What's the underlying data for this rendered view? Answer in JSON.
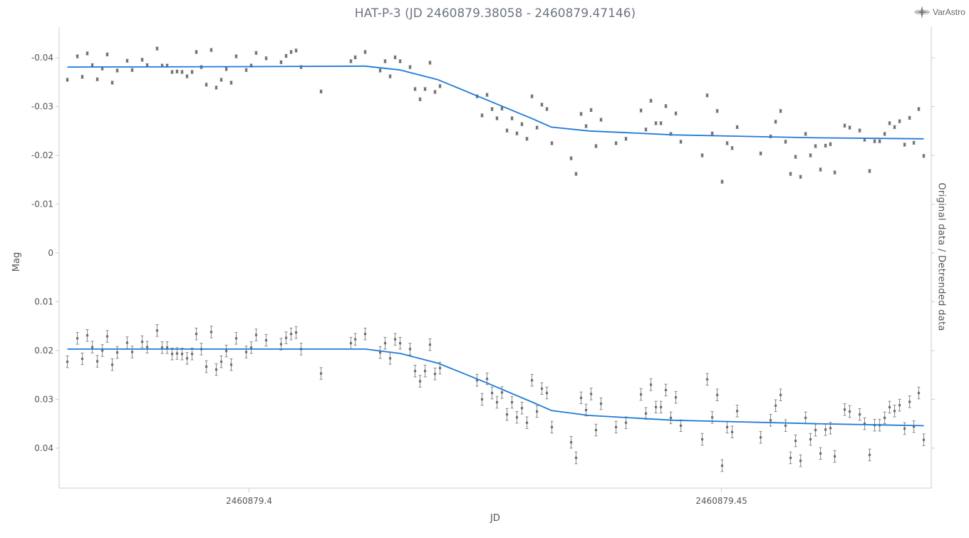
{
  "chart_data": {
    "type": "scatter",
    "title": "HAT-P-3 (JD 2460879.38058 - 2460879.47146)",
    "xlabel": "JD",
    "ylabel": "Mag",
    "y2label": "Original data / Detrended data",
    "xlim": [
      2460879.3799,
      2460879.4722
    ],
    "ylim": [
      -0.0463,
      0.0482
    ],
    "y_inverted": true,
    "xticks": [
      {
        "v": 2460879.4,
        "label": "2460879.4"
      },
      {
        "v": 2460879.45,
        "label": "2460879.45"
      }
    ],
    "yticks": [
      {
        "v": -0.04,
        "label": "-0.04"
      },
      {
        "v": -0.03,
        "label": "-0.03"
      },
      {
        "v": -0.02,
        "label": "-0.02"
      },
      {
        "v": -0.01,
        "label": "-0.01"
      },
      {
        "v": 0,
        "label": "0"
      },
      {
        "v": 0.01,
        "label": "0.01"
      },
      {
        "v": 0.02,
        "label": "0.02"
      },
      {
        "v": 0.03,
        "label": "0.03"
      },
      {
        "v": 0.04,
        "label": "0.04"
      }
    ],
    "x": [
      2460879.38077,
      2460879.38183,
      2460879.38235,
      2460879.38288,
      2460879.38341,
      2460879.38394,
      2460879.38447,
      2460879.38499,
      2460879.38552,
      2460879.38605,
      2460879.3871,
      2460879.38763,
      2460879.38869,
      2460879.38922,
      2460879.39027,
      2460879.3908,
      2460879.39133,
      2460879.39186,
      2460879.39238,
      2460879.39291,
      2460879.39344,
      2460879.39397,
      2460879.39442,
      2460879.39495,
      2460879.39548,
      2460879.396,
      2460879.39653,
      2460879.39706,
      2460879.39759,
      2460879.39811,
      2460879.39864,
      2460879.3997,
      2460879.40023,
      2460879.40075,
      2460879.40181,
      2460879.40339,
      2460879.40392,
      2460879.40445,
      2460879.40498,
      2460879.40551,
      2460879.40762,
      2460879.41078,
      2460879.41124,
      2460879.41229,
      2460879.41388,
      2460879.4144,
      2460879.41493,
      2460879.41546,
      2460879.41599,
      2460879.41704,
      2460879.41757,
      2460879.4181,
      2460879.41863,
      2460879.41915,
      2460879.41968,
      2460879.42021,
      2460879.42413,
      2460879.42466,
      2460879.42519,
      2460879.42572,
      2460879.42624,
      2460879.42677,
      2460879.4273,
      2460879.42783,
      2460879.42835,
      2460879.42888,
      2460879.42941,
      2460879.42994,
      2460879.43047,
      2460879.43099,
      2460879.43152,
      2460879.43205,
      2460879.43409,
      2460879.43461,
      2460879.43514,
      2460879.43567,
      2460879.4362,
      2460879.43672,
      2460879.43725,
      2460879.43884,
      2460879.43989,
      2460879.44148,
      2460879.442,
      2460879.44253,
      2460879.44306,
      2460879.44359,
      2460879.44411,
      2460879.44464,
      2460879.44517,
      2460879.4457,
      2460879.44796,
      2460879.44849,
      2460879.44902,
      2460879.44955,
      2460879.45007,
      2460879.4506,
      2460879.45113,
      2460879.45166,
      2460879.45415,
      2460879.4552,
      2460879.45573,
      2460879.45626,
      2460879.45678,
      2460879.45731,
      2460879.45784,
      2460879.45837,
      2460879.4589,
      2460879.45942,
      2460879.45995,
      2460879.46048,
      2460879.46101,
      2460879.46153,
      2460879.46199,
      2460879.46304,
      2460879.46357,
      2460879.46463,
      2460879.46515,
      2460879.46568,
      2460879.46621,
      2460879.46674,
      2460879.46727,
      2460879.46779,
      2460879.46832,
      2460879.46885,
      2460879.46938,
      2460879.46991,
      2460879.47036,
      2460879.47088,
      2460879.47141
    ],
    "series": [
      {
        "name": "Original data",
        "color": "#777777",
        "error": 0.0003,
        "values": [
          -0.0355,
          -0.0403,
          -0.0361,
          -0.0409,
          -0.0385,
          -0.0356,
          -0.0378,
          -0.0407,
          -0.0349,
          -0.0374,
          -0.0394,
          -0.0375,
          -0.0396,
          -0.0385,
          -0.0419,
          -0.0384,
          -0.0384,
          -0.0371,
          -0.0372,
          -0.0371,
          -0.0362,
          -0.0371,
          -0.0412,
          -0.0381,
          -0.0345,
          -0.0416,
          -0.0339,
          -0.0355,
          -0.0377,
          -0.0349,
          -0.0403,
          -0.0375,
          -0.0384,
          -0.041,
          -0.0399,
          -0.0391,
          -0.0404,
          -0.0412,
          -0.0415,
          -0.0381,
          -0.0331,
          -0.0393,
          -0.0401,
          -0.0412,
          -0.0374,
          -0.0393,
          -0.0362,
          -0.0401,
          -0.0393,
          -0.0381,
          -0.0336,
          -0.0315,
          -0.0336,
          -0.039,
          -0.033,
          -0.0342,
          -0.0321,
          -0.0282,
          -0.0324,
          -0.0295,
          -0.0276,
          -0.0296,
          -0.0251,
          -0.0276,
          -0.0245,
          -0.0264,
          -0.0234,
          -0.0321,
          -0.0257,
          -0.0304,
          -0.0295,
          -0.0225,
          -0.0194,
          -0.0162,
          -0.0285,
          -0.026,
          -0.0293,
          -0.0219,
          -0.0273,
          -0.0225,
          -0.0234,
          -0.0292,
          -0.0253,
          -0.0312,
          -0.0266,
          -0.0266,
          -0.0301,
          -0.0244,
          -0.0286,
          -0.0228,
          -0.02,
          -0.0323,
          -0.0245,
          -0.0291,
          -0.0146,
          -0.0225,
          -0.0215,
          -0.0258,
          -0.0204,
          -0.0239,
          -0.0269,
          -0.0291,
          -0.0228,
          -0.0162,
          -0.0197,
          -0.0156,
          -0.0244,
          -0.02,
          -0.0219,
          -0.0171,
          -0.022,
          -0.0223,
          -0.0165,
          -0.0261,
          -0.0257,
          -0.0251,
          -0.0232,
          -0.0168,
          -0.0229,
          -0.0229,
          -0.0244,
          -0.0266,
          -0.0258,
          -0.027,
          -0.0222,
          -0.0277,
          -0.0226,
          -0.0295,
          -0.0199
        ]
      },
      {
        "name": "Detrended data",
        "color": "#888888",
        "error": 0.0012,
        "values": [
          0.0223,
          0.0175,
          0.0217,
          0.0169,
          0.0193,
          0.0222,
          0.02,
          0.0171,
          0.0229,
          0.0204,
          0.0184,
          0.0203,
          0.0182,
          0.0193,
          0.0159,
          0.0194,
          0.0194,
          0.0207,
          0.0206,
          0.0207,
          0.0216,
          0.0207,
          0.0166,
          0.0197,
          0.0233,
          0.0162,
          0.0239,
          0.0223,
          0.0201,
          0.0229,
          0.0175,
          0.0203,
          0.0194,
          0.0168,
          0.0179,
          0.0187,
          0.0174,
          0.0166,
          0.0163,
          0.0197,
          0.0247,
          0.0185,
          0.0177,
          0.0166,
          0.0204,
          0.0185,
          0.0216,
          0.0177,
          0.0185,
          0.0197,
          0.0242,
          0.0263,
          0.0242,
          0.0188,
          0.0248,
          0.0236,
          0.0261,
          0.03,
          0.0258,
          0.0287,
          0.0306,
          0.0286,
          0.0331,
          0.0306,
          0.0337,
          0.0318,
          0.0348,
          0.0261,
          0.0325,
          0.0278,
          0.0287,
          0.0357,
          0.0388,
          0.042,
          0.0297,
          0.0322,
          0.0289,
          0.0363,
          0.0309,
          0.0357,
          0.0348,
          0.029,
          0.0329,
          0.027,
          0.0316,
          0.0316,
          0.0281,
          0.0338,
          0.0296,
          0.0354,
          0.0382,
          0.0259,
          0.0337,
          0.0291,
          0.0436,
          0.0357,
          0.0367,
          0.0324,
          0.0378,
          0.0343,
          0.0313,
          0.0291,
          0.0354,
          0.042,
          0.0385,
          0.0426,
          0.0338,
          0.0382,
          0.0363,
          0.0411,
          0.0362,
          0.0359,
          0.0417,
          0.0321,
          0.0325,
          0.0331,
          0.035,
          0.0414,
          0.0353,
          0.0353,
          0.0338,
          0.0316,
          0.0324,
          0.0312,
          0.036,
          0.0305,
          0.0356,
          0.0287,
          0.0383
        ]
      }
    ],
    "models": [
      {
        "name": "Original data model",
        "color": "#1f7ad8",
        "points": [
          [
            2460879.38077,
            -0.0381
          ],
          [
            2460879.4,
            -0.0382
          ],
          [
            2460879.41229,
            -0.0383
          ],
          [
            2460879.416,
            -0.0375
          ],
          [
            2460879.42,
            -0.0355
          ],
          [
            2460879.425,
            -0.0315
          ],
          [
            2460879.43,
            -0.0275
          ],
          [
            2460879.432,
            -0.0258
          ],
          [
            2460879.436,
            -0.025
          ],
          [
            2460879.445,
            -0.0242
          ],
          [
            2460879.46,
            -0.0236
          ],
          [
            2460879.47141,
            -0.0234
          ]
        ]
      },
      {
        "name": "Detrended data model",
        "color": "#1f7ad8",
        "points": [
          [
            2460879.38077,
            0.0197
          ],
          [
            2460879.41229,
            0.0197
          ],
          [
            2460879.416,
            0.0206
          ],
          [
            2460879.42,
            0.0226
          ],
          [
            2460879.425,
            0.0265
          ],
          [
            2460879.43,
            0.0306
          ],
          [
            2460879.432,
            0.0323
          ],
          [
            2460879.436,
            0.0333
          ],
          [
            2460879.445,
            0.0343
          ],
          [
            2460879.46,
            0.035
          ],
          [
            2460879.47141,
            0.0354
          ]
        ]
      }
    ]
  },
  "logo": {
    "text": "VarAstro"
  }
}
